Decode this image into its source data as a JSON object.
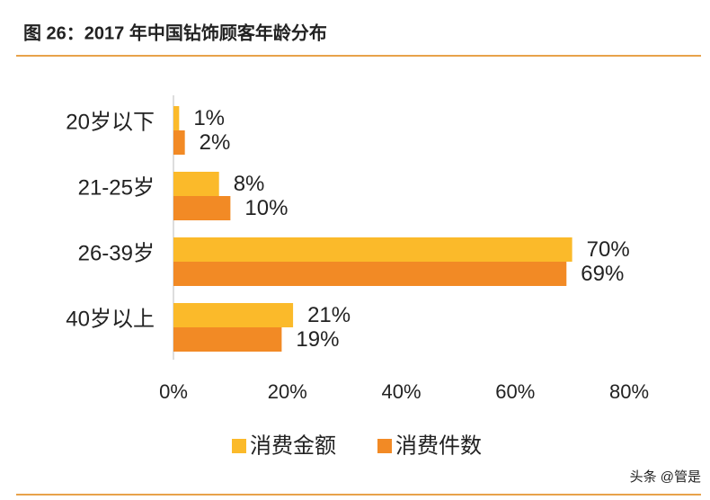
{
  "chart_data": {
    "type": "barh",
    "title": "图 26：2017 年中国钻饰顾客年龄分布",
    "categories": [
      "20岁以下",
      "21-25岁",
      "26-39岁",
      "40岁以上"
    ],
    "series": [
      {
        "name": "消费金额",
        "color": "#fbba2a",
        "values": [
          1,
          8,
          70,
          21
        ],
        "value_labels": [
          "1%",
          "8%",
          "70%",
          "21%"
        ]
      },
      {
        "name": "消费件数",
        "color": "#f28a25",
        "values": [
          2,
          10,
          69,
          19
        ],
        "value_labels": [
          "2%",
          "10%",
          "69%",
          "19%"
        ]
      }
    ],
    "xlim": [
      0,
      80
    ],
    "xticks": [
      {
        "value": 0,
        "label": "0%"
      },
      {
        "value": 20,
        "label": "20%"
      },
      {
        "value": 40,
        "label": "40%"
      },
      {
        "value": 60,
        "label": "60%"
      },
      {
        "value": 80,
        "label": "80%"
      }
    ],
    "grid": false,
    "legend": "bottom",
    "watermark": "头条 @管是"
  }
}
